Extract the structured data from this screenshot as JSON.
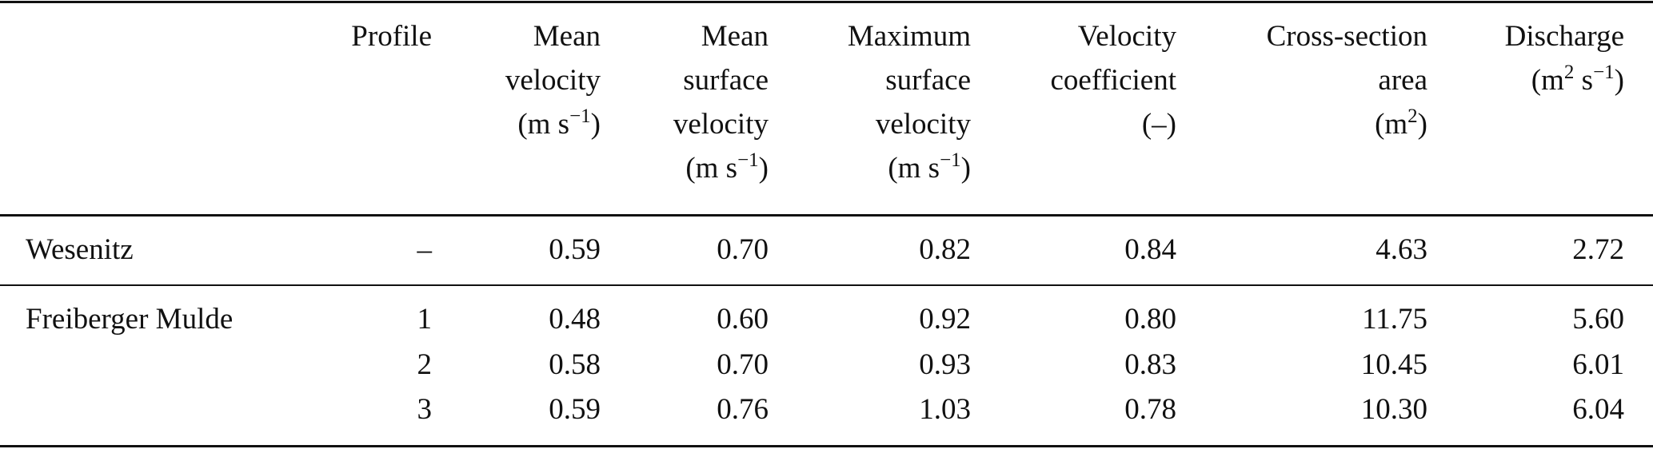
{
  "table": {
    "headers": [
      {
        "lines": [
          ""
        ],
        "unit": "",
        "sup": ""
      },
      {
        "lines": [
          "Profile"
        ],
        "unit_pre": "",
        "sup": "",
        "unit_post": ""
      },
      {
        "lines": [
          "Mean",
          "velocity"
        ],
        "unit_pre": "(m s",
        "sup": "−1",
        "unit_post": ")"
      },
      {
        "lines": [
          "Mean",
          "surface",
          "velocity"
        ],
        "unit_pre": "(m s",
        "sup": "−1",
        "unit_post": ")"
      },
      {
        "lines": [
          "Maximum",
          "surface",
          "velocity"
        ],
        "unit_pre": "(m s",
        "sup": "−1",
        "unit_post": ")"
      },
      {
        "lines": [
          "Velocity",
          "coefficient"
        ],
        "unit_pre": "(–)",
        "sup": "",
        "unit_post": ""
      },
      {
        "lines": [
          "Cross-section",
          "area"
        ],
        "unit_pre": "(m",
        "sup": "2",
        "unit_post": ")"
      },
      {
        "lines": [
          "Discharge"
        ],
        "unit_pre": "(m",
        "sup": "2",
        "unit_mid": " s",
        "sup2": "−1",
        "unit_post": ")"
      }
    ],
    "rows": [
      [
        "Wesenitz",
        "–",
        "0.59",
        "0.70",
        "0.82",
        "0.84",
        "4.63",
        "2.72"
      ],
      [
        "Freiberger Mulde",
        "1",
        "0.48",
        "0.60",
        "0.92",
        "0.80",
        "11.75",
        "5.60"
      ],
      [
        "",
        "2",
        "0.58",
        "0.70",
        "0.93",
        "0.83",
        "10.45",
        "6.01"
      ],
      [
        "",
        "3",
        "0.59",
        "0.76",
        "1.03",
        "0.78",
        "10.30",
        "6.04"
      ]
    ]
  }
}
